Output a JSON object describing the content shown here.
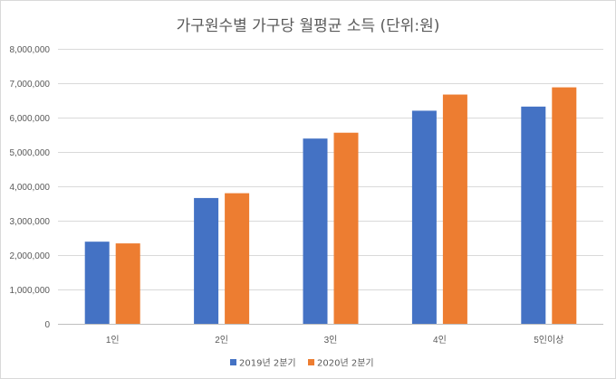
{
  "chart_data": {
    "type": "bar",
    "title": "가구원수별 가구당 월평균 소득 (단위:원)",
    "categories": [
      "1인",
      "2인",
      "3인",
      "4인",
      "5인이상"
    ],
    "series": [
      {
        "name": "2019년 2분기",
        "color": "#4472C4",
        "values": [
          2390000,
          3660000,
          5390000,
          6200000,
          6320000
        ]
      },
      {
        "name": "2020년 2분기",
        "color": "#ED7D31",
        "values": [
          2340000,
          3800000,
          5560000,
          6670000,
          6880000
        ]
      }
    ],
    "ylim": [
      0,
      8000000
    ],
    "yticks": [
      "0",
      "1,000,000",
      "2,000,000",
      "3,000,000",
      "4,000,000",
      "5,000,000",
      "6,000,000",
      "7,000,000",
      "8,000,000"
    ],
    "grid": true,
    "legend": "bottom"
  }
}
